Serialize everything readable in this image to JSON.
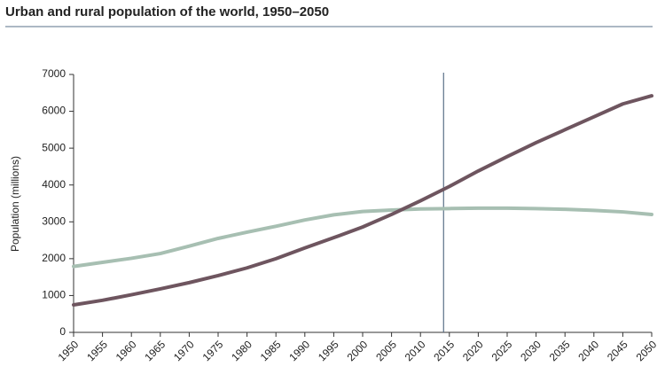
{
  "chart_data": {
    "type": "line",
    "title": "Urban and rural population of the world, 1950–2050",
    "y_label": "Population (millions)",
    "x": [
      1950,
      1955,
      1960,
      1965,
      1970,
      1975,
      1980,
      1985,
      1990,
      1995,
      2000,
      2005,
      2010,
      2015,
      2020,
      2025,
      2030,
      2035,
      2040,
      2045,
      2050
    ],
    "series": [
      {
        "color": "#6e555f",
        "values": [
          746,
          870,
          1020,
          1180,
          1350,
          1540,
          1750,
          2000,
          2290,
          2570,
          2860,
          3200,
          3570,
          3960,
          4380,
          4770,
          5150,
          5500,
          5850,
          6200,
          6420
        ]
      },
      {
        "color": "#a7bfb2",
        "values": [
          1790,
          1900,
          2010,
          2140,
          2340,
          2550,
          2720,
          2880,
          3050,
          3190,
          3280,
          3320,
          3350,
          3360,
          3370,
          3370,
          3360,
          3340,
          3310,
          3270,
          3200
        ]
      }
    ],
    "reference_x": 2014,
    "reference_color": "#5a7088",
    "xlim": [
      1950,
      2050
    ],
    "xticks": [
      1950,
      1955,
      1960,
      1965,
      1970,
      1975,
      1980,
      1985,
      1990,
      1995,
      2000,
      2005,
      2010,
      2015,
      2020,
      2025,
      2030,
      2035,
      2040,
      2045,
      2050
    ],
    "ylim": [
      0,
      7000
    ],
    "yticks": [
      0,
      1000,
      2000,
      3000,
      4000,
      5000,
      6000,
      7000
    ]
  }
}
